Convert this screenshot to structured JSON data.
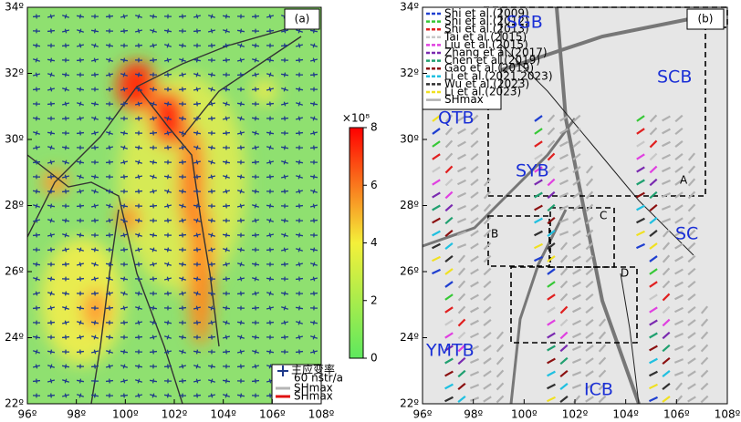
{
  "panels": [
    {
      "label": "(a)",
      "xticks": [
        {
          "value": 96,
          "label": "96º"
        },
        {
          "value": 98,
          "label": "98º"
        },
        {
          "value": 100,
          "label": "100º"
        },
        {
          "value": 102,
          "label": "102º"
        },
        {
          "value": 104,
          "label": "104º"
        },
        {
          "value": 106,
          "label": "106º"
        },
        {
          "value": 108,
          "label": "108º"
        }
      ],
      "yticks": [
        {
          "value": 22,
          "label": "22º"
        },
        {
          "value": 24,
          "label": "24º"
        },
        {
          "value": 26,
          "label": "26º"
        },
        {
          "value": 28,
          "label": "28º"
        },
        {
          "value": 30,
          "label": "30º"
        },
        {
          "value": 32,
          "label": "32º"
        },
        {
          "value": 34,
          "label": "34º"
        }
      ],
      "colorbar": {
        "exponent_label": "×10⁸",
        "lim": [
          0,
          8
        ],
        "ticks": [
          0,
          2,
          4,
          6,
          8
        ],
        "colors": [
          "#5ee85e",
          "#f4f03a",
          "#ff0000"
        ]
      },
      "legend": [
        {
          "label": "主应变率",
          "color": "#1f3a8a"
        },
        {
          "label": "60 nstr/a"
        },
        {
          "label": "SHmax",
          "color": "#b5b5b5"
        },
        {
          "label": "SHmax",
          "color": "#e01010"
        }
      ]
    },
    {
      "label": "(b)",
      "xticks": [
        {
          "value": 96,
          "label": "96º"
        },
        {
          "value": 98,
          "label": "98º"
        },
        {
          "value": 100,
          "label": "100º"
        },
        {
          "value": 102,
          "label": "102º"
        },
        {
          "value": 104,
          "label": "104º"
        },
        {
          "value": 106,
          "label": "106º"
        },
        {
          "value": 108,
          "label": "108º"
        }
      ],
      "yticks": [
        {
          "value": 22,
          "label": "22º"
        },
        {
          "value": 24,
          "label": "24º"
        },
        {
          "value": 26,
          "label": "26º"
        },
        {
          "value": 28,
          "label": "28º"
        },
        {
          "value": 30,
          "label": "30º"
        },
        {
          "value": 32,
          "label": "32º"
        },
        {
          "value": 34,
          "label": "34º"
        }
      ],
      "legend": [
        {
          "label": "Shi et al.(2009)",
          "color": "#1f3fd0"
        },
        {
          "label": "Shi et al.(2012)",
          "color": "#36c836"
        },
        {
          "label": "Shi et al.(2013)",
          "color": "#e02020"
        },
        {
          "label": "Tai et al.(2015)",
          "color": "#c8c8c8"
        },
        {
          "label": "Liu et al.(2015)",
          "color": "#e040e0"
        },
        {
          "label": "Zhang et al.(2017)",
          "color": "#7a2ab0"
        },
        {
          "label": "Chen et al.(2019)",
          "color": "#20a070"
        },
        {
          "label": "Gao et al.(2019)",
          "color": "#8b1010"
        },
        {
          "label": "Li et al.(2021,2023)",
          "color": "#20c0e0"
        },
        {
          "label": "Wu et al.(2023)",
          "color": "#303030"
        },
        {
          "label": "Li et al.(2023)",
          "color": "#f0e020"
        },
        {
          "label": "SHmax",
          "color": "#b0b0b0"
        }
      ],
      "regions": [
        "SGB",
        "QTB",
        "SCB",
        "SYB",
        "SC",
        "YMTB",
        "ICB",
        "A",
        "B",
        "C",
        "D"
      ]
    }
  ]
}
